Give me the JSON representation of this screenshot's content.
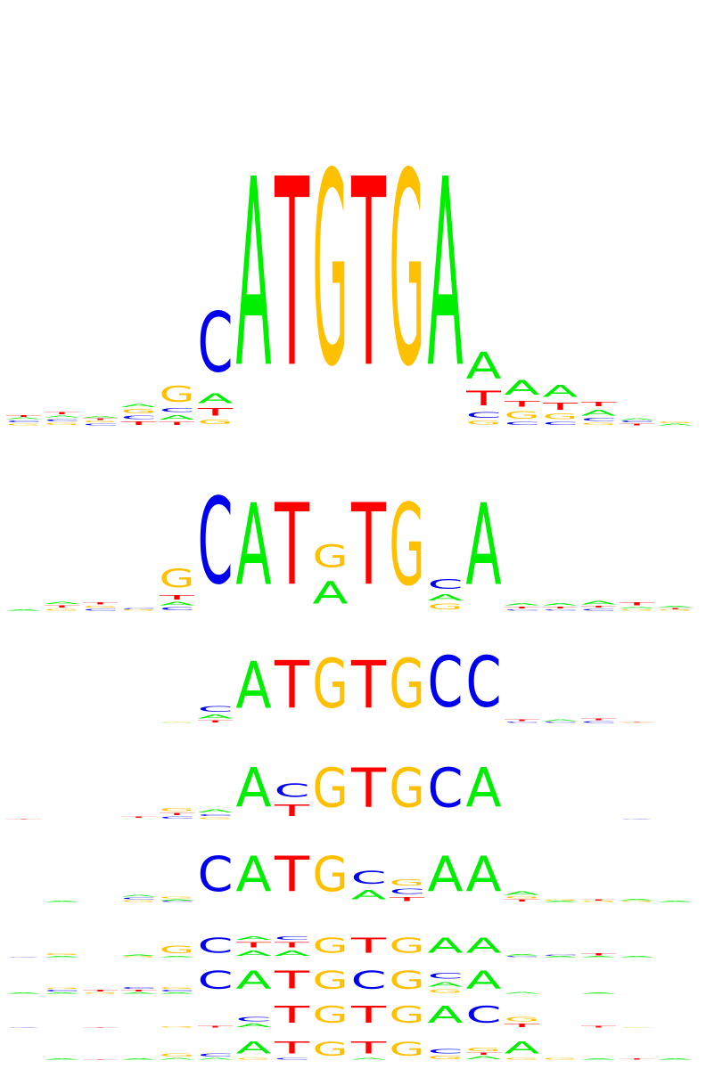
{
  "colors": {
    "A": "#00ee00",
    "C": "#0000ee",
    "G": "#ffc000",
    "T": "#ff0000"
  },
  "logos": [
    {
      "name": "logo-1",
      "columns": [
        [
          [
            "G",
            0.04
          ],
          [
            "C",
            0.04
          ],
          [
            "A",
            0.03
          ],
          [
            "T",
            0.03
          ]
        ],
        [
          [
            "G",
            0.05
          ],
          [
            "C",
            0.05
          ],
          [
            "A",
            0.04
          ],
          [
            "T",
            0.05
          ]
        ],
        [
          [
            "C",
            0.04
          ],
          [
            "G",
            0.03
          ],
          [
            "T",
            0.03
          ],
          [
            "A",
            0.03
          ]
        ],
        [
          [
            "T",
            0.07
          ],
          [
            "C",
            0.07
          ],
          [
            "G",
            0.09
          ],
          [
            "A",
            0.06
          ]
        ],
        [
          [
            "T",
            0.06
          ],
          [
            "A",
            0.1
          ],
          [
            "C",
            0.08
          ],
          [
            "G",
            0.33
          ]
        ],
        [
          [
            "G",
            0.1
          ],
          [
            "T",
            0.15
          ],
          [
            "A",
            0.2
          ],
          [
            "C",
            1.25
          ]
        ],
        [
          [
            "A",
            3.9
          ]
        ],
        [
          [
            "T",
            3.9
          ]
        ],
        [
          [
            "G",
            4.0
          ]
        ],
        [
          [
            "T",
            3.9
          ]
        ],
        [
          [
            "G",
            4.0
          ]
        ],
        [
          [
            "A",
            3.9
          ]
        ],
        [
          [
            "G",
            0.08
          ],
          [
            "C",
            0.12
          ],
          [
            "T",
            0.3
          ],
          [
            "A",
            0.55
          ]
        ],
        [
          [
            "C",
            0.06
          ],
          [
            "G",
            0.16
          ],
          [
            "T",
            0.12
          ],
          [
            "A",
            0.3
          ]
        ],
        [
          [
            "C",
            0.06
          ],
          [
            "G",
            0.12
          ],
          [
            "T",
            0.14
          ],
          [
            "A",
            0.25
          ]
        ],
        [
          [
            "G",
            0.05
          ],
          [
            "C",
            0.06
          ],
          [
            "A",
            0.12
          ],
          [
            "T",
            0.1
          ]
        ],
        [
          [
            "T",
            0.04
          ],
          [
            "C",
            0.03
          ],
          [
            "A",
            0.03
          ]
        ],
        [
          [
            "A",
            0.03
          ],
          [
            "G",
            0.03
          ]
        ]
      ]
    },
    {
      "name": "logo-2",
      "columns": [
        [
          [
            "A",
            0.02
          ]
        ],
        [
          [
            "G",
            0.04
          ],
          [
            "T",
            0.05
          ],
          [
            "A",
            0.05
          ]
        ],
        [
          [
            "C",
            0.04
          ],
          [
            "G",
            0.04
          ],
          [
            "T",
            0.05
          ]
        ],
        [
          [
            "G",
            0.02
          ],
          [
            "C",
            0.02
          ]
        ],
        [
          [
            "C",
            0.06
          ],
          [
            "A",
            0.08
          ],
          [
            "T",
            0.1
          ],
          [
            "G",
            0.4
          ]
        ],
        [
          [
            "C",
            1.9
          ]
        ],
        [
          [
            "A",
            1.8
          ]
        ],
        [
          [
            "T",
            1.8
          ]
        ],
        [
          [
            "A",
            0.5
          ],
          [
            "G",
            0.5
          ]
        ],
        [
          [
            "T",
            1.8
          ]
        ],
        [
          [
            "G",
            1.8
          ]
        ],
        [
          [
            "G",
            0.12
          ],
          [
            "A",
            0.14
          ],
          [
            "C",
            0.22
          ]
        ],
        [
          [
            "A",
            1.8
          ]
        ],
        [
          [
            "C",
            0.03
          ],
          [
            "T",
            0.04
          ],
          [
            "A",
            0.05
          ]
        ],
        [
          [
            "C",
            0.03
          ],
          [
            "T",
            0.04
          ],
          [
            "A",
            0.05
          ]
        ],
        [
          [
            "C",
            0.04
          ],
          [
            "T",
            0.04
          ],
          [
            "A",
            0.07
          ]
        ],
        [
          [
            "G",
            0.03
          ],
          [
            "A",
            0.04
          ],
          [
            "T",
            0.06
          ]
        ],
        [
          [
            "G",
            0.02
          ],
          [
            "T",
            0.03
          ],
          [
            "A",
            0.03
          ]
        ]
      ]
    },
    {
      "name": "logo-3",
      "columns": [
        [],
        [],
        [],
        [],
        [
          [
            "A",
            0.02
          ],
          [
            "G",
            0.02
          ]
        ],
        [
          [
            "T",
            0.06
          ],
          [
            "A",
            0.1
          ],
          [
            "C",
            0.15
          ]
        ],
        [
          [
            "A",
            1.25
          ]
        ],
        [
          [
            "T",
            1.25
          ]
        ],
        [
          [
            "G",
            1.3
          ]
        ],
        [
          [
            "T",
            1.25
          ]
        ],
        [
          [
            "G",
            1.3
          ]
        ],
        [
          [
            "C",
            1.35
          ]
        ],
        [
          [
            "C",
            1.35
          ]
        ],
        [
          [
            "C",
            0.03
          ],
          [
            "T",
            0.04
          ]
        ],
        [
          [
            "C",
            0.03
          ],
          [
            "A",
            0.05
          ]
        ],
        [
          [
            "C",
            0.04
          ],
          [
            "T",
            0.05
          ]
        ],
        [
          [
            "G",
            0.02
          ],
          [
            "T",
            0.02
          ]
        ],
        []
      ]
    },
    {
      "name": "logo-4",
      "columns": [
        [
          [
            "T",
            0.02
          ]
        ],
        [],
        [],
        [
          [
            "A",
            0.02
          ],
          [
            "T",
            0.03
          ]
        ],
        [
          [
            "C",
            0.06
          ],
          [
            "T",
            0.06
          ],
          [
            "G",
            0.08
          ]
        ],
        [
          [
            "G",
            0.05
          ],
          [
            "C",
            0.05
          ],
          [
            "A",
            0.08
          ]
        ],
        [
          [
            "A",
            1.05
          ]
        ],
        [
          [
            "T",
            0.3
          ],
          [
            "C",
            0.35
          ]
        ],
        [
          [
            "G",
            1.05
          ]
        ],
        [
          [
            "T",
            1.05
          ]
        ],
        [
          [
            "G",
            1.05
          ]
        ],
        [
          [
            "C",
            1.05
          ]
        ],
        [
          [
            "A",
            1.05
          ]
        ],
        [],
        [],
        [],
        [
          [
            "C",
            0.02
          ]
        ],
        []
      ]
    },
    {
      "name": "logo-5",
      "columns": [
        [],
        [
          [
            "A",
            0.02
          ]
        ],
        [],
        [
          [
            "G",
            0.04
          ],
          [
            "C",
            0.04
          ],
          [
            "A",
            0.04
          ]
        ],
        [
          [
            "C",
            0.02
          ],
          [
            "A",
            0.03
          ],
          [
            "G",
            0.04
          ]
        ],
        [
          [
            "C",
            0.85
          ]
        ],
        [
          [
            "A",
            0.85
          ]
        ],
        [
          [
            "T",
            0.85
          ]
        ],
        [
          [
            "G",
            0.85
          ]
        ],
        [
          [
            "A",
            0.22
          ],
          [
            "C",
            0.3
          ]
        ],
        [
          [
            "T",
            0.1
          ],
          [
            "C",
            0.12
          ],
          [
            "G",
            0.15
          ]
        ],
        [
          [
            "A",
            0.85
          ]
        ],
        [
          [
            "A",
            0.85
          ]
        ],
        [
          [
            "T",
            0.05
          ],
          [
            "G",
            0.05
          ],
          [
            "A",
            0.08
          ]
        ],
        [
          [
            "A",
            0.02
          ],
          [
            "G",
            0.02
          ]
        ],
        [
          [
            "G",
            0.02
          ],
          [
            "T",
            0.02
          ]
        ],
        [
          [
            "G",
            0.03
          ],
          [
            "A",
            0.03
          ]
        ],
        [
          [
            "A",
            0.02
          ]
        ]
      ]
    },
    {
      "name": "logo-6",
      "columns": [
        [
          [
            "C",
            0.02
          ]
        ],
        [
          [
            "A",
            0.04
          ],
          [
            "G",
            0.05
          ]
        ],
        [],
        [
          [
            "G",
            0.03
          ],
          [
            "A",
            0.03
          ]
        ],
        [
          [
            "A",
            0.04
          ],
          [
            "G",
            0.22
          ]
        ],
        [
          [
            "C",
            0.45
          ]
        ],
        [
          [
            "A",
            0.16
          ],
          [
            "T",
            0.15
          ],
          [
            "A",
            0.1
          ]
        ],
        [
          [
            "A",
            0.16
          ],
          [
            "T",
            0.15
          ],
          [
            "C",
            0.1
          ]
        ],
        [
          [
            "G",
            0.45
          ]
        ],
        [
          [
            "T",
            0.45
          ]
        ],
        [
          [
            "G",
            0.45
          ]
        ],
        [
          [
            "A",
            0.45
          ]
        ],
        [
          [
            "A",
            0.45
          ]
        ],
        [
          [
            "C",
            0.03
          ],
          [
            "A",
            0.04
          ]
        ],
        [
          [
            "A",
            0.03
          ],
          [
            "C",
            0.03
          ]
        ],
        [
          [
            "A",
            0.03
          ],
          [
            "T",
            0.06
          ]
        ],
        [
          [
            "A",
            0.04
          ]
        ],
        []
      ]
    },
    {
      "name": "logo-7",
      "columns": [
        [
          [
            "A",
            0.02
          ]
        ],
        [
          [
            "A",
            0.02
          ],
          [
            "C",
            0.03
          ],
          [
            "G",
            0.02
          ]
        ],
        [
          [
            "G",
            0.02
          ],
          [
            "T",
            0.03
          ]
        ],
        [
          [
            "A",
            0.02
          ],
          [
            "T",
            0.03
          ],
          [
            "C",
            0.03
          ]
        ],
        [
          [
            "A",
            0.02
          ],
          [
            "C",
            0.03
          ],
          [
            "G",
            0.03
          ]
        ],
        [
          [
            "C",
            0.3
          ]
        ],
        [
          [
            "A",
            0.3
          ]
        ],
        [
          [
            "T",
            0.3
          ]
        ],
        [
          [
            "G",
            0.3
          ]
        ],
        [
          [
            "C",
            0.3
          ]
        ],
        [
          [
            "G",
            0.3
          ]
        ],
        [
          [
            "G",
            0.06
          ],
          [
            "A",
            0.08
          ],
          [
            "C",
            0.1
          ]
        ],
        [
          [
            "A",
            0.3
          ]
        ],
        [
          [
            "A",
            0.03
          ]
        ],
        [],
        [
          [
            "A",
            0.02
          ]
        ],
        [],
        []
      ]
    },
    {
      "name": "logo-8",
      "columns": [
        [
          [
            "C",
            0.01
          ]
        ],
        [],
        [
          [
            "T",
            0.01
          ]
        ],
        [],
        [
          [
            "G",
            0.02
          ]
        ],
        [
          [
            "T",
            0.03
          ]
        ],
        [
          [
            "A",
            0.06
          ],
          [
            "C",
            0.08
          ]
        ],
        [
          [
            "T",
            0.3
          ]
        ],
        [
          [
            "G",
            0.3
          ]
        ],
        [
          [
            "T",
            0.3
          ]
        ],
        [
          [
            "G",
            0.3
          ]
        ],
        [
          [
            "A",
            0.3
          ]
        ],
        [
          [
            "C",
            0.3
          ]
        ],
        [
          [
            "T",
            0.06
          ],
          [
            "G",
            0.08
          ]
        ],
        [],
        [
          [
            "T",
            0.03
          ]
        ],
        [
          [
            "G",
            0.01
          ]
        ],
        []
      ]
    },
    {
      "name": "logo-9",
      "columns": [
        [],
        [
          [
            "A",
            0.02
          ]
        ],
        [
          [
            "T",
            0.01
          ]
        ],
        [
          [
            "A",
            0.02
          ]
        ],
        [
          [
            "A",
            0.03
          ],
          [
            "G",
            0.05
          ]
        ],
        [
          [
            "A",
            0.03
          ],
          [
            "C",
            0.05
          ]
        ],
        [
          [
            "G",
            0.03
          ],
          [
            "A",
            0.22
          ]
        ],
        [
          [
            "C",
            0.03
          ],
          [
            "T",
            0.22
          ]
        ],
        [
          [
            "G",
            0.25
          ]
        ],
        [
          [
            "A",
            0.03
          ],
          [
            "T",
            0.22
          ]
        ],
        [
          [
            "G",
            0.25
          ]
        ],
        [
          [
            "G",
            0.06
          ],
          [
            "C",
            0.08
          ]
        ],
        [
          [
            "A",
            0.05
          ],
          [
            "T",
            0.04
          ],
          [
            "G",
            0.06
          ]
        ],
        [
          [
            "G",
            0.03
          ],
          [
            "A",
            0.22
          ]
        ],
        [
          [
            "G",
            0.03
          ]
        ],
        [
          [
            "A",
            0.02
          ]
        ],
        [
          [
            "T",
            0.02
          ]
        ],
        [
          [
            "A",
            0.02
          ]
        ]
      ]
    }
  ]
}
